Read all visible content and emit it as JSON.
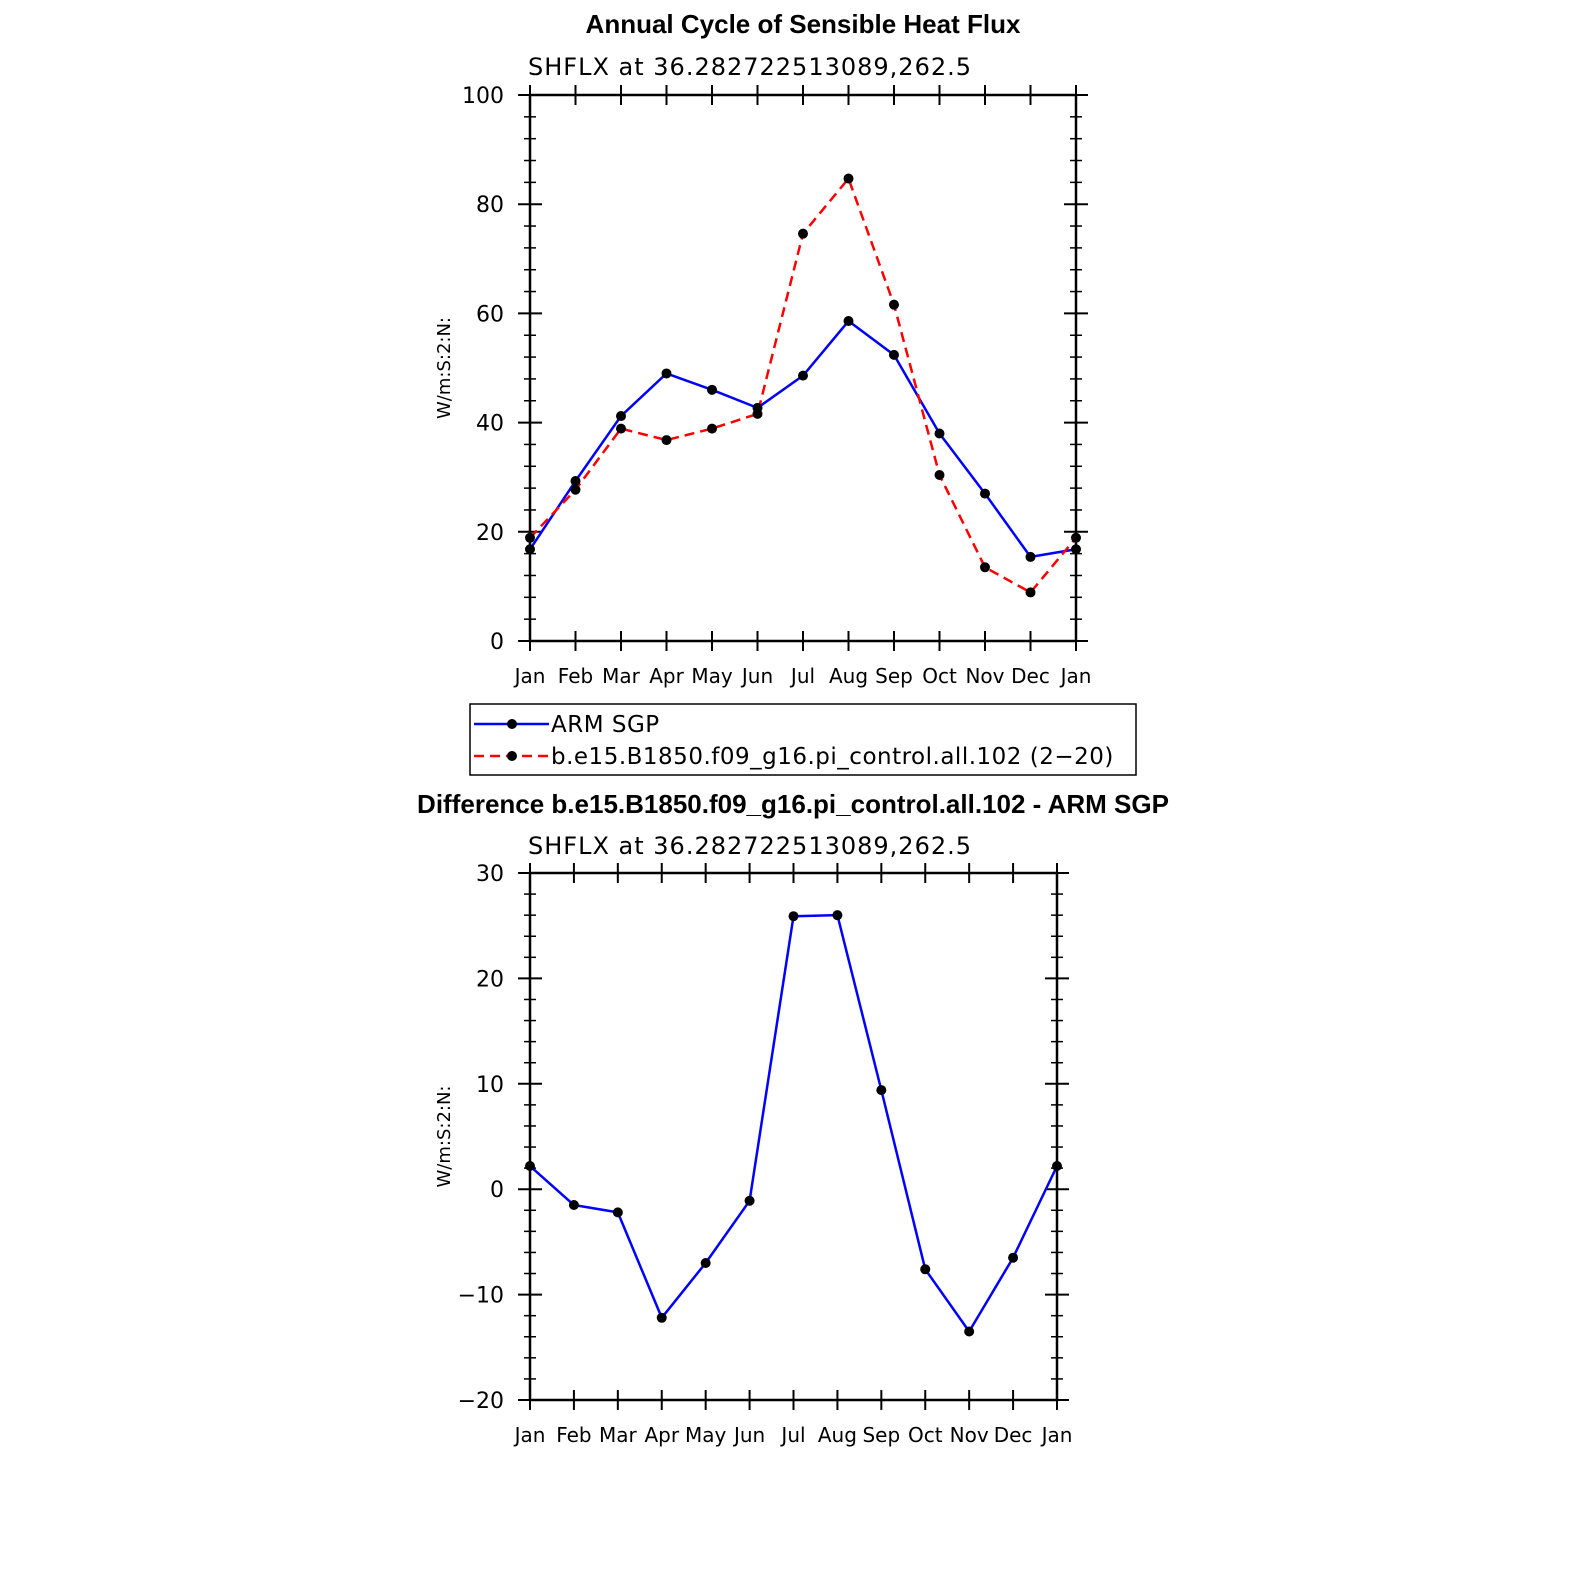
{
  "chart_data": [
    {
      "type": "line",
      "title": "Annual Cycle of Sensible Heat Flux",
      "subtitle": "SHFLX  at  36.282722513089,262.5",
      "ylabel": "W/m:S:2:N:",
      "xlabel": "",
      "categories": [
        "Jan",
        "Feb",
        "Mar",
        "Apr",
        "May",
        "Jun",
        "Jul",
        "Aug",
        "Sep",
        "Oct",
        "Nov",
        "Dec",
        "Jan"
      ],
      "ylim": [
        0,
        100
      ],
      "yticks": [
        0,
        20,
        40,
        60,
        80,
        100
      ],
      "series": [
        {
          "name": "ARM SGP",
          "color": "#0000ff",
          "dash": "solid",
          "values": [
            16.8,
            29.3,
            41.2,
            49.0,
            46.0,
            42.7,
            48.6,
            58.6,
            52.4,
            38.0,
            27.0,
            15.4,
            16.8
          ]
        },
        {
          "name": "b.e15.B1850.f09_g16.pi_control.all.102 (2−20)",
          "color": "#ff0000",
          "dash": "dashed",
          "values": [
            18.9,
            27.7,
            38.9,
            36.8,
            38.9,
            41.6,
            74.6,
            84.7,
            61.6,
            30.4,
            13.5,
            8.9,
            18.9
          ]
        }
      ]
    },
    {
      "type": "line",
      "title": "Difference b.e15.B1850.f09_g16.pi_control.all.102 - ARM SGP",
      "subtitle": "SHFLX  at  36.282722513089,262.5",
      "ylabel": "W/m:S:2:N:",
      "xlabel": "",
      "categories": [
        "Jan",
        "Feb",
        "Mar",
        "Apr",
        "May",
        "Jun",
        "Jul",
        "Aug",
        "Sep",
        "Oct",
        "Nov",
        "Dec",
        "Jan"
      ],
      "ylim": [
        -20,
        30
      ],
      "yticks": [
        -20,
        -10,
        0,
        10,
        20,
        30
      ],
      "ytick_labels": [
        "−20",
        "−10",
        "0",
        "10",
        "20",
        "30"
      ],
      "series": [
        {
          "name": "Difference",
          "color": "#0000ff",
          "dash": "solid",
          "values": [
            2.2,
            -1.5,
            -2.2,
            -12.2,
            -7.0,
            -1.1,
            25.9,
            26.0,
            9.4,
            -7.6,
            -13.5,
            -6.5,
            2.2
          ]
        }
      ]
    }
  ]
}
